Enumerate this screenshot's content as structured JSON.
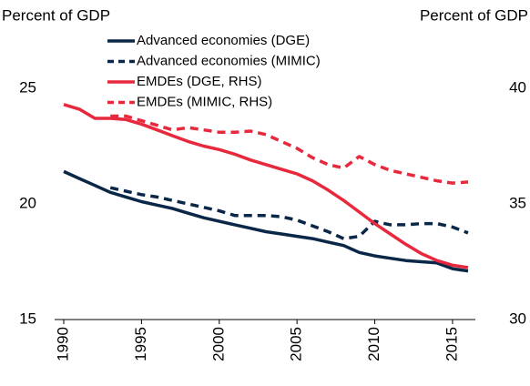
{
  "chart_data": {
    "type": "line",
    "y_label": "Percent of GDP",
    "y2_label": "Percent of GDP",
    "x": [
      1990,
      1991,
      1992,
      1993,
      1994,
      1995,
      1996,
      1997,
      1998,
      1999,
      2000,
      2001,
      2002,
      2003,
      2004,
      2005,
      2006,
      2007,
      2008,
      2009,
      2010,
      2011,
      2012,
      2013,
      2014,
      2015,
      2016
    ],
    "xlim": [
      1990,
      2016
    ],
    "xticks": [
      1990,
      1995,
      2000,
      2005,
      2010,
      2015
    ],
    "ylim": [
      15,
      25
    ],
    "yticks": [
      15,
      20,
      25
    ],
    "y2lim": [
      30,
      40
    ],
    "y2ticks": [
      30,
      35,
      40
    ],
    "series": [
      {
        "name": "Advanced economies (DGE)",
        "color": "#0b2748",
        "dashed": false,
        "values": [
          21.4,
          21.1,
          20.8,
          20.5,
          20.3,
          20.1,
          19.95,
          19.8,
          19.6,
          19.4,
          19.25,
          19.1,
          18.95,
          18.8,
          18.7,
          18.6,
          18.5,
          18.35,
          18.2,
          17.9,
          17.75,
          17.65,
          17.55,
          17.5,
          17.45,
          17.2,
          17.1
        ]
      },
      {
        "name": "Advanced economies (MIMIC)",
        "color": "#0b2748",
        "dashed": true,
        "values": [
          null,
          null,
          null,
          20.7,
          20.55,
          20.4,
          20.3,
          20.15,
          20.0,
          19.85,
          19.7,
          19.5,
          19.5,
          19.5,
          19.45,
          19.3,
          19.05,
          18.8,
          18.5,
          18.6,
          19.25,
          19.1,
          19.1,
          19.15,
          19.15,
          19.0,
          18.75
        ]
      },
      {
        "name": "EMDEs (DGE, RHS)",
        "color": "#e8283c",
        "dashed": false,
        "axis": "y2",
        "values": [
          39.3,
          39.1,
          38.7,
          38.7,
          38.65,
          38.45,
          38.2,
          37.95,
          37.7,
          37.5,
          37.35,
          37.15,
          36.9,
          36.7,
          36.5,
          36.3,
          36.0,
          35.6,
          35.15,
          34.65,
          34.15,
          33.7,
          33.25,
          32.85,
          32.55,
          32.35,
          32.25
        ]
      },
      {
        "name": "EMDEs (MIMIC, RHS)",
        "color": "#e8283c",
        "dashed": true,
        "axis": "y2",
        "values": [
          null,
          null,
          null,
          38.8,
          38.8,
          38.6,
          38.4,
          38.2,
          38.3,
          38.2,
          38.1,
          38.1,
          38.15,
          38.0,
          37.7,
          37.4,
          37.0,
          36.7,
          36.55,
          37.05,
          36.7,
          36.45,
          36.3,
          36.15,
          36.0,
          35.9,
          35.95
        ]
      }
    ]
  }
}
